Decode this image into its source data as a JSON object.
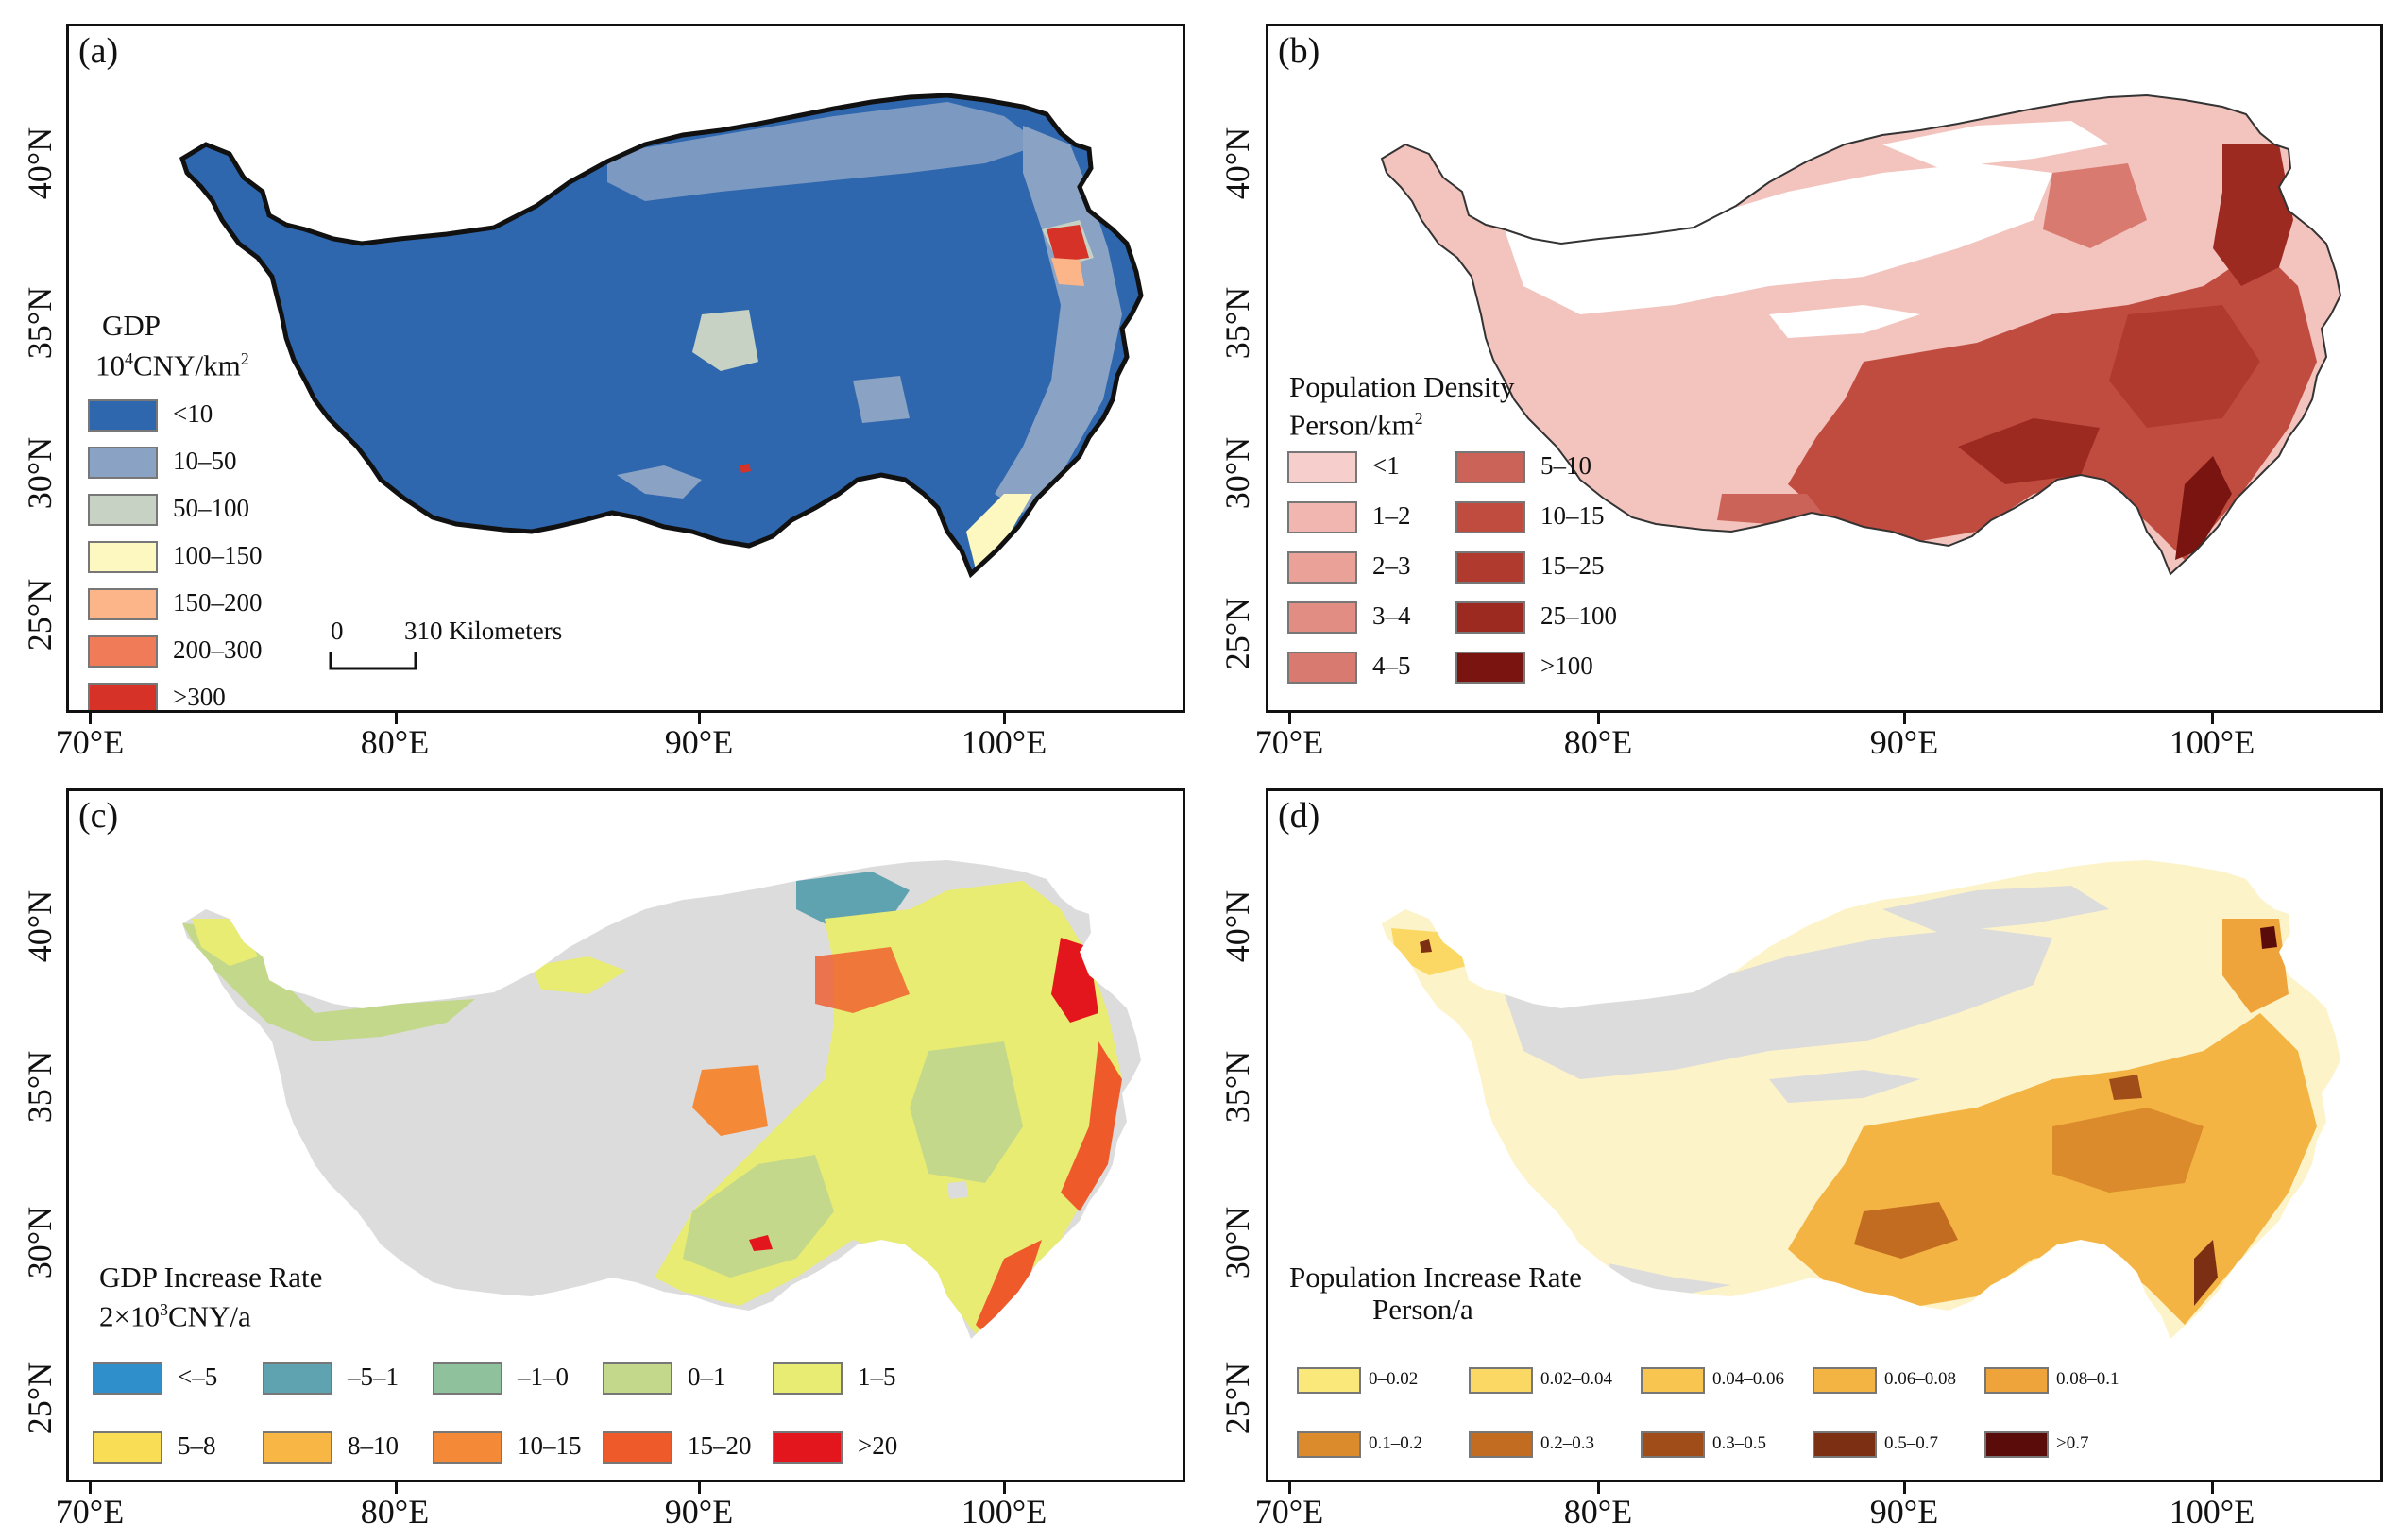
{
  "axes": {
    "lat_labels": [
      "40°N",
      "35°N",
      "30°N",
      "25°N"
    ],
    "lon_labels": [
      "70°E",
      "80°E",
      "90°E",
      "100°E"
    ]
  },
  "panel_a": {
    "label": "(a)",
    "legend_title_1": "GDP",
    "legend_title_2": "10",
    "legend_title_2_sup": "4",
    "legend_title_2_rest": "CNY/km",
    "legend_title_2_sup2": "2",
    "items": [
      {
        "label": "<10",
        "color": "#2f67ae"
      },
      {
        "label": "10–50",
        "color": "#8aa2c4"
      },
      {
        "label": "50–100",
        "color": "#c7d2c4"
      },
      {
        "label": "100–150",
        "color": "#fcf8c0"
      },
      {
        "label": "150–200",
        "color": "#fbb588"
      },
      {
        "label": "200–300",
        "color": "#ef7b58"
      },
      {
        "label": ">300",
        "color": "#d63228"
      }
    ],
    "scale_zero": "0",
    "scale_label": "310 Kilometers"
  },
  "panel_b": {
    "label": "(b)",
    "legend_title_1": "Population Density",
    "legend_title_2": "Person/km",
    "legend_title_2_sup": "2",
    "items_left": [
      {
        "label": "<1",
        "color": "#f6cfcc"
      },
      {
        "label": "1–2",
        "color": "#f1b6b0"
      },
      {
        "label": "2–3",
        "color": "#eaa198"
      },
      {
        "label": "3–4",
        "color": "#e28d84"
      },
      {
        "label": "4–5",
        "color": "#d87a70"
      }
    ],
    "items_right": [
      {
        "label": "5–10",
        "color": "#cc6358"
      },
      {
        "label": "10–15",
        "color": "#c04c40"
      },
      {
        "label": "15–25",
        "color": "#b03a2e"
      },
      {
        "label": "25–100",
        "color": "#9c2a20"
      },
      {
        "label": ">100",
        "color": "#7a1410"
      }
    ]
  },
  "panel_c": {
    "label": "(c)",
    "legend_title_1": "GDP Increase Rate",
    "legend_title_2": "2×10",
    "legend_title_2_sup": "3",
    "legend_title_2_rest": "CNY/a",
    "row1": [
      {
        "label": "<–5",
        "color": "#2e8fcb"
      },
      {
        "label": "–5–1",
        "color": "#5fa3b0"
      },
      {
        "label": "–1–0",
        "color": "#8fc29c"
      },
      {
        "label": "0–1",
        "color": "#c3d88a"
      },
      {
        "label": "1–5",
        "color": "#e9ec72"
      }
    ],
    "row2": [
      {
        "label": "5–8",
        "color": "#f9de55"
      },
      {
        "label": "8–10",
        "color": "#f8b645"
      },
      {
        "label": "10–15",
        "color": "#f48a37"
      },
      {
        "label": "15–20",
        "color": "#ef5a2b"
      },
      {
        "label": ">20",
        "color": "#e4161d"
      }
    ]
  },
  "panel_d": {
    "label": "(d)",
    "legend_title_1": "Population Increase Rate",
    "legend_title_2": "Person/a",
    "row1": [
      {
        "label": "0–0.02",
        "color": "#fbe87a"
      },
      {
        "label": "0.02–0.04",
        "color": "#fbd864"
      },
      {
        "label": "0.04–0.06",
        "color": "#f8c550"
      },
      {
        "label": "0.06–0.08",
        "color": "#f4b443"
      },
      {
        "label": "0.08–0.1",
        "color": "#eea43a"
      }
    ],
    "row2": [
      {
        "label": "0.1–0.2",
        "color": "#db8a2c"
      },
      {
        "label": "0.2–0.3",
        "color": "#c26c22"
      },
      {
        "label": "0.3–0.5",
        "color": "#a14d1a"
      },
      {
        "label": "0.5–0.7",
        "color": "#7c2f12"
      },
      {
        "label": ">0.7",
        "color": "#5a0c0a"
      }
    ]
  }
}
